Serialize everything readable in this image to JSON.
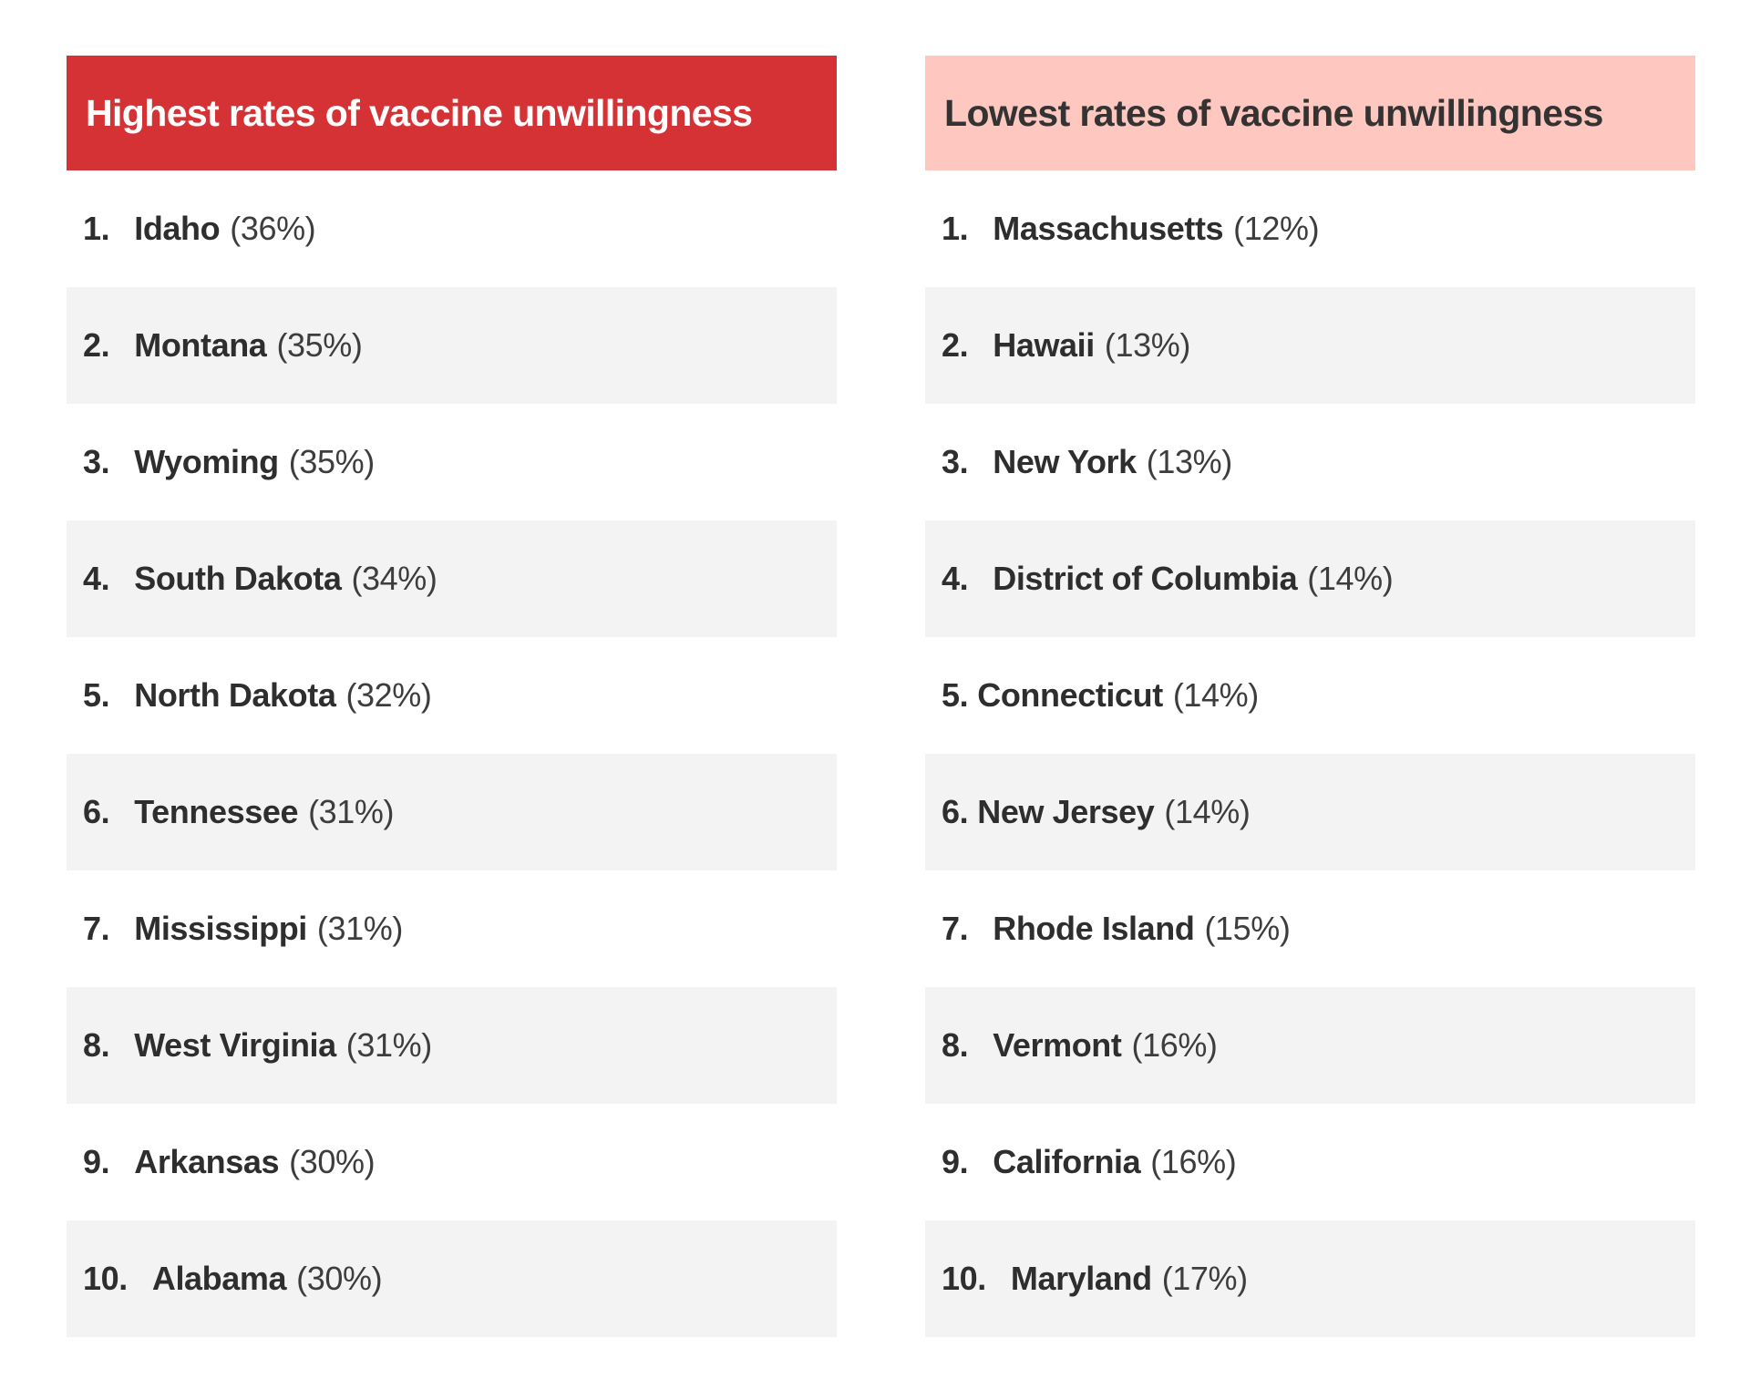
{
  "colors": {
    "page_background": "#ffffff",
    "highest_header_bg": "#d43235",
    "highest_header_text": "#ffffff",
    "lowest_header_bg": "#fec7bf",
    "lowest_header_text": "#333333",
    "row_shade": "#f2f3f2",
    "row_text": "#2e2e2e",
    "percent_text": "#3d3d3d"
  },
  "columns": [
    {
      "id": "highest",
      "header": {
        "label": "Highest rates of vaccine unwillingness",
        "bg": "#d43235",
        "text_color": "#ffffff"
      },
      "rows": [
        {
          "rank": "1.",
          "state": "Idaho",
          "value": "(36%)"
        },
        {
          "rank": "2.",
          "state": "Montana",
          "value": "(35%)"
        },
        {
          "rank": "3.",
          "state": "Wyoming",
          "value": "(35%)"
        },
        {
          "rank": "4.",
          "state": "South Dakota",
          "value": "(34%)"
        },
        {
          "rank": "5.",
          "state": "North Dakota",
          "value": "(32%)"
        },
        {
          "rank": "6.",
          "state": "Tennessee",
          "value": "(31%)"
        },
        {
          "rank": "7.",
          "state": "Mississippi",
          "value": "(31%)"
        },
        {
          "rank": "8.",
          "state": "West Virginia",
          "value": "(31%)"
        },
        {
          "rank": "9.",
          "state": "Arkansas",
          "value": "(30%)"
        },
        {
          "rank": "10.",
          "state": "Alabama",
          "value": "(30%)"
        }
      ]
    },
    {
      "id": "lowest",
      "header": {
        "label": "Lowest rates of vaccine unwillingness",
        "bg": "#fec7bf",
        "text_color": "#333333"
      },
      "rows": [
        {
          "rank": "1.",
          "state": "Massachusetts",
          "value": "(12%)"
        },
        {
          "rank": "2.",
          "state": "Hawaii",
          "value": "(13%)"
        },
        {
          "rank": "3.",
          "state": "New York",
          "value": "(13%)"
        },
        {
          "rank": "4.",
          "state": "District of Columbia",
          "value": "(14%)"
        },
        {
          "rank": "5.",
          "state": "Connecticut",
          "value": "(14%)",
          "tight_spacing": true
        },
        {
          "rank": "6.",
          "state": "New Jersey",
          "value": "(14%)",
          "tight_spacing": true
        },
        {
          "rank": "7.",
          "state": "Rhode Island",
          "value": "(15%)"
        },
        {
          "rank": "8.",
          "state": "Vermont",
          "value": "(16%)"
        },
        {
          "rank": "9.",
          "state": "California",
          "value": "(16%)"
        },
        {
          "rank": "10.",
          "state": "Maryland",
          "value": "(17%)"
        }
      ]
    }
  ],
  "chart_data": [
    {
      "type": "table",
      "title": "Highest rates of vaccine unwillingness",
      "categories": [
        "Idaho",
        "Montana",
        "Wyoming",
        "South Dakota",
        "North Dakota",
        "Tennessee",
        "Mississippi",
        "West Virginia",
        "Arkansas",
        "Alabama"
      ],
      "values": [
        36,
        35,
        35,
        34,
        32,
        31,
        31,
        31,
        30,
        30
      ],
      "unit": "%",
      "ranks": [
        1,
        2,
        3,
        4,
        5,
        6,
        7,
        8,
        9,
        10
      ]
    },
    {
      "type": "table",
      "title": "Lowest rates of vaccine unwillingness",
      "categories": [
        "Massachusetts",
        "Hawaii",
        "New York",
        "District of Columbia",
        "Connecticut",
        "New Jersey",
        "Rhode Island",
        "Vermont",
        "California",
        "Maryland"
      ],
      "values": [
        12,
        13,
        13,
        14,
        14,
        14,
        15,
        16,
        16,
        17
      ],
      "unit": "%",
      "ranks": [
        1,
        2,
        3,
        4,
        5,
        6,
        7,
        8,
        9,
        10
      ]
    }
  ]
}
